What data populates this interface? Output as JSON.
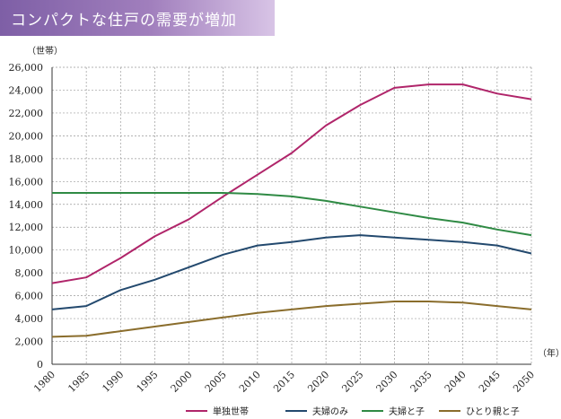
{
  "header": {
    "title": "コンパクトな住戸の需要が増加"
  },
  "chart_data": {
    "type": "line",
    "title": "コンパクトな住戸の需要が増加",
    "ylabel": "（世帯）",
    "xlabel": "（年）",
    "ylim": [
      0,
      26000
    ],
    "yticks": [
      "0",
      "2,000",
      "4,000",
      "6,000",
      "8,000",
      "10,000",
      "12,000",
      "14,000",
      "16,000",
      "18,000",
      "20,000",
      "22,000",
      "24,000",
      "26,000"
    ],
    "x": [
      "1980",
      "1985",
      "1990",
      "1995",
      "2000",
      "2005",
      "2010",
      "2015",
      "2020",
      "2025",
      "2030",
      "2035",
      "2040",
      "2045",
      "2050"
    ],
    "grid": true,
    "legend_position": "bottom",
    "series": [
      {
        "name": "単独世帯",
        "color": "#b0256a",
        "values": [
          7100,
          7600,
          9300,
          11200,
          12700,
          14700,
          16600,
          18500,
          20900,
          22700,
          24200,
          24500,
          24500,
          23700,
          23200
        ]
      },
      {
        "name": "夫婦のみ",
        "color": "#23496e",
        "values": [
          4800,
          5100,
          6500,
          7400,
          8500,
          9600,
          10400,
          10700,
          11100,
          11300,
          11100,
          10900,
          10700,
          10400,
          9700
        ]
      },
      {
        "name": "夫婦と子",
        "color": "#2f8a44",
        "values": [
          15000,
          15000,
          15000,
          15000,
          15000,
          15000,
          14900,
          14700,
          14300,
          13800,
          13300,
          12800,
          12400,
          11800,
          11300
        ]
      },
      {
        "name": "ひとり親と子",
        "color": "#8a6d2c",
        "values": [
          2400,
          2500,
          2900,
          3300,
          3700,
          4100,
          4500,
          4800,
          5100,
          5300,
          5500,
          5500,
          5400,
          5100,
          4800
        ]
      }
    ]
  }
}
